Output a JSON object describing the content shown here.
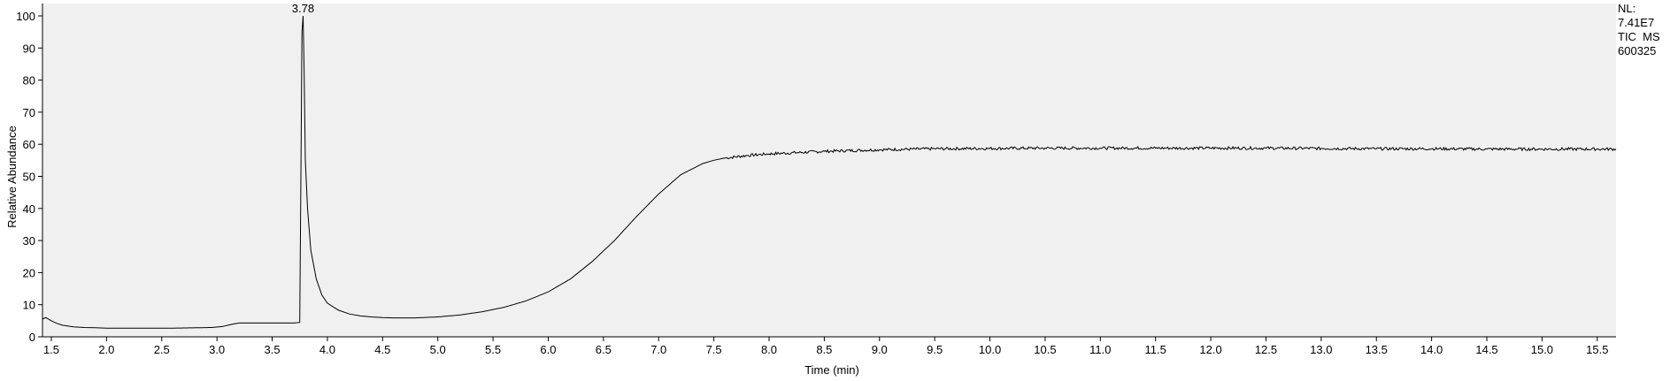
{
  "chart_data": {
    "type": "line",
    "title": "",
    "xlabel": "Time (min)",
    "ylabel": "Relative Abundance",
    "xlim": [
      1.42,
      15.67
    ],
    "ylim": [
      0,
      100
    ],
    "grid": false,
    "background_color": "#f0f0f0",
    "line_color": "#000000",
    "x_ticks": [
      "1.5",
      "2.0",
      "2.5",
      "3.0",
      "3.5",
      "4.0",
      "4.5",
      "5.0",
      "5.5",
      "6.0",
      "6.5",
      "7.0",
      "7.5",
      "8.0",
      "8.5",
      "9.0",
      "9.5",
      "10.0",
      "10.5",
      "11.0",
      "11.5",
      "12.0",
      "12.5",
      "13.0",
      "13.5",
      "14.0",
      "14.5",
      "15.0",
      "15.5"
    ],
    "y_ticks": [
      "0",
      "10",
      "20",
      "30",
      "40",
      "50",
      "60",
      "70",
      "80",
      "90",
      "100"
    ],
    "peak_label": {
      "text": "3.78",
      "x": 3.78,
      "y": 100
    },
    "info_lines": [
      "NL:",
      "7.41E7",
      "TIC  MS",
      "600325"
    ],
    "series": [
      {
        "x": [
          1.42,
          1.45,
          1.5,
          1.55,
          1.6,
          1.7,
          1.8,
          1.9,
          2.0,
          2.2,
          2.4,
          2.6,
          2.8,
          2.95,
          3.05,
          3.1,
          3.15,
          3.2,
          3.3,
          3.4,
          3.5,
          3.6,
          3.7,
          3.75,
          3.76,
          3.77,
          3.78,
          3.79,
          3.8,
          3.82,
          3.85,
          3.9,
          3.95,
          4.0,
          4.1,
          4.2,
          4.3,
          4.4,
          4.5,
          4.6,
          4.7,
          4.8,
          5.0,
          5.2,
          5.4,
          5.6,
          5.8,
          6.0,
          6.2,
          6.4,
          6.6,
          6.8,
          7.0,
          7.2,
          7.4,
          7.5,
          7.6,
          7.8,
          8.0,
          8.5,
          9.0,
          9.5,
          10.0,
          10.5,
          11.0,
          11.5,
          12.0,
          12.5,
          13.0,
          13.5,
          14.0,
          14.5,
          15.0,
          15.5,
          15.67
        ],
        "y": [
          5.5,
          6.0,
          5.0,
          4.2,
          3.6,
          3.1,
          2.9,
          2.8,
          2.7,
          2.7,
          2.7,
          2.7,
          2.8,
          2.9,
          3.2,
          3.6,
          4.0,
          4.3,
          4.3,
          4.3,
          4.3,
          4.3,
          4.3,
          4.5,
          50,
          95,
          100,
          82,
          55,
          40,
          27,
          18,
          13,
          10.5,
          8.3,
          7.1,
          6.5,
          6.2,
          6.0,
          5.9,
          5.9,
          5.9,
          6.2,
          6.8,
          7.8,
          9.2,
          11.2,
          14.0,
          18.0,
          23.5,
          30.0,
          37.5,
          44.5,
          50.5,
          54.0,
          55.0,
          55.7,
          56.5,
          57.0,
          57.8,
          58.3,
          58.6,
          58.7,
          58.8,
          58.8,
          58.8,
          58.8,
          58.8,
          58.7,
          58.6,
          58.6,
          58.5,
          58.5,
          58.5,
          58.5
        ]
      }
    ]
  }
}
